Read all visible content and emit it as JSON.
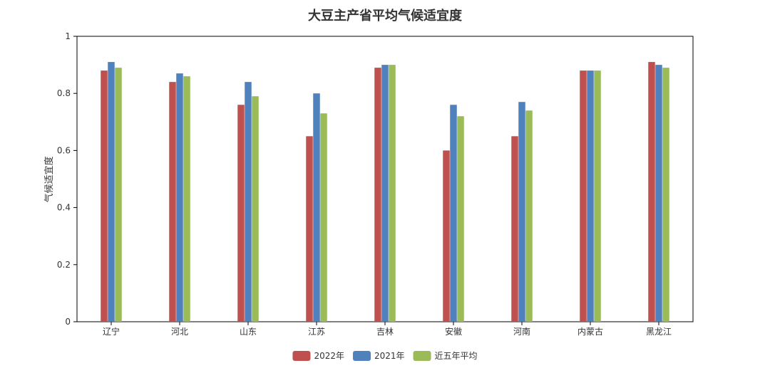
{
  "chart_data": {
    "type": "bar",
    "title": "大豆主产省平均气候适宜度",
    "ylabel": "气候适宜度",
    "xlabel": "",
    "ylim": [
      0,
      1
    ],
    "yticks": [
      0,
      0.2,
      0.4,
      0.6,
      0.8,
      1
    ],
    "ytick_labels": [
      "0",
      "0.2",
      "0.4",
      "0.6",
      "0.8",
      "1"
    ],
    "grid": false,
    "legend_position": "bottom-center",
    "categories": [
      "辽宁",
      "河北",
      "山东",
      "江苏",
      "吉林",
      "安徽",
      "河南",
      "内蒙古",
      "黑龙江"
    ],
    "series": [
      {
        "name": "2022年",
        "color": "#c0504d",
        "values": [
          0.88,
          0.84,
          0.76,
          0.65,
          0.89,
          0.6,
          0.65,
          0.88,
          0.91
        ]
      },
      {
        "name": "2021年",
        "color": "#4f81bd",
        "values": [
          0.91,
          0.87,
          0.84,
          0.8,
          0.9,
          0.76,
          0.77,
          0.88,
          0.9
        ]
      },
      {
        "name": "近五年平均",
        "color": "#9bbb59",
        "values": [
          0.89,
          0.86,
          0.79,
          0.73,
          0.9,
          0.72,
          0.74,
          0.88,
          0.89
        ]
      }
    ]
  }
}
